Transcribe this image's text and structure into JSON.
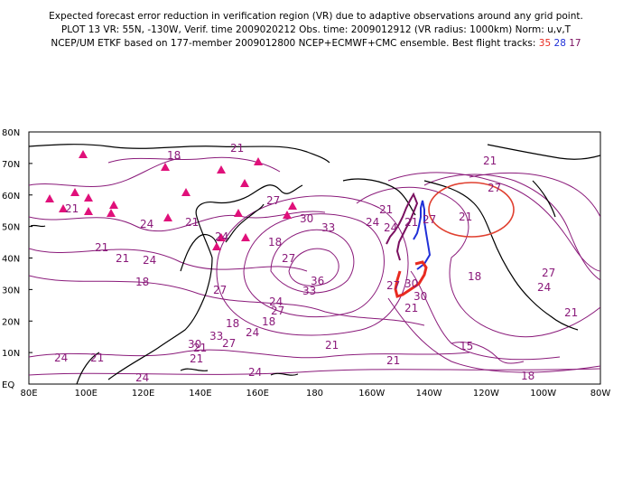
{
  "header": {
    "line1": "Expected forecast error reduction in verification region (VR) due to adaptive observations around any grid point.",
    "line2": "PLOT 13 VR: 55N, -130W, Verif. time 2009020212 Obs. time: 2009012912 (VR radius: 1000km) Norm: u,v,T",
    "line3_prefix": "NCEP/UM ETKF based on 177-member 2009012800 NCEP+ECMWF+CMC ensemble. Best flight tracks:",
    "track_red": "35",
    "track_blue": "28",
    "track_purple": "17"
  },
  "axes": {
    "y_labels": [
      "80N",
      "70N",
      "60N",
      "50N",
      "40N",
      "30N",
      "20N",
      "10N",
      "EQ"
    ],
    "x_labels": [
      "80E",
      "100E",
      "120E",
      "140E",
      "160E",
      "180",
      "160W",
      "140W",
      "120W",
      "100W",
      "80W"
    ]
  },
  "colors": {
    "contour": "#8a1a7a",
    "coast": "#000000",
    "triangle": "#e0107a",
    "track_red": "#e82a20",
    "track_blue": "#2030d8",
    "track_purple": "#7a1060",
    "vr_circle": "#e04030"
  },
  "contour_labels": [
    "21",
    "18",
    "21",
    "27",
    "21",
    "24",
    "21",
    "33",
    "30",
    "24",
    "21",
    "24",
    "27",
    "21",
    "24",
    "27",
    "21",
    "18",
    "27",
    "36",
    "33",
    "30",
    "27",
    "24",
    "21",
    "27",
    "24",
    "18",
    "27",
    "24",
    "18",
    "30",
    "21",
    "33",
    "30",
    "27",
    "24",
    "21",
    "21",
    "24",
    "21",
    "21",
    "24",
    "27",
    "21",
    "18",
    "18",
    "21",
    "21",
    "24",
    "15",
    "18"
  ],
  "markers": {
    "triangles": "raob-stations",
    "squares": "flight-track-points",
    "vr_circle": "verification-region"
  }
}
